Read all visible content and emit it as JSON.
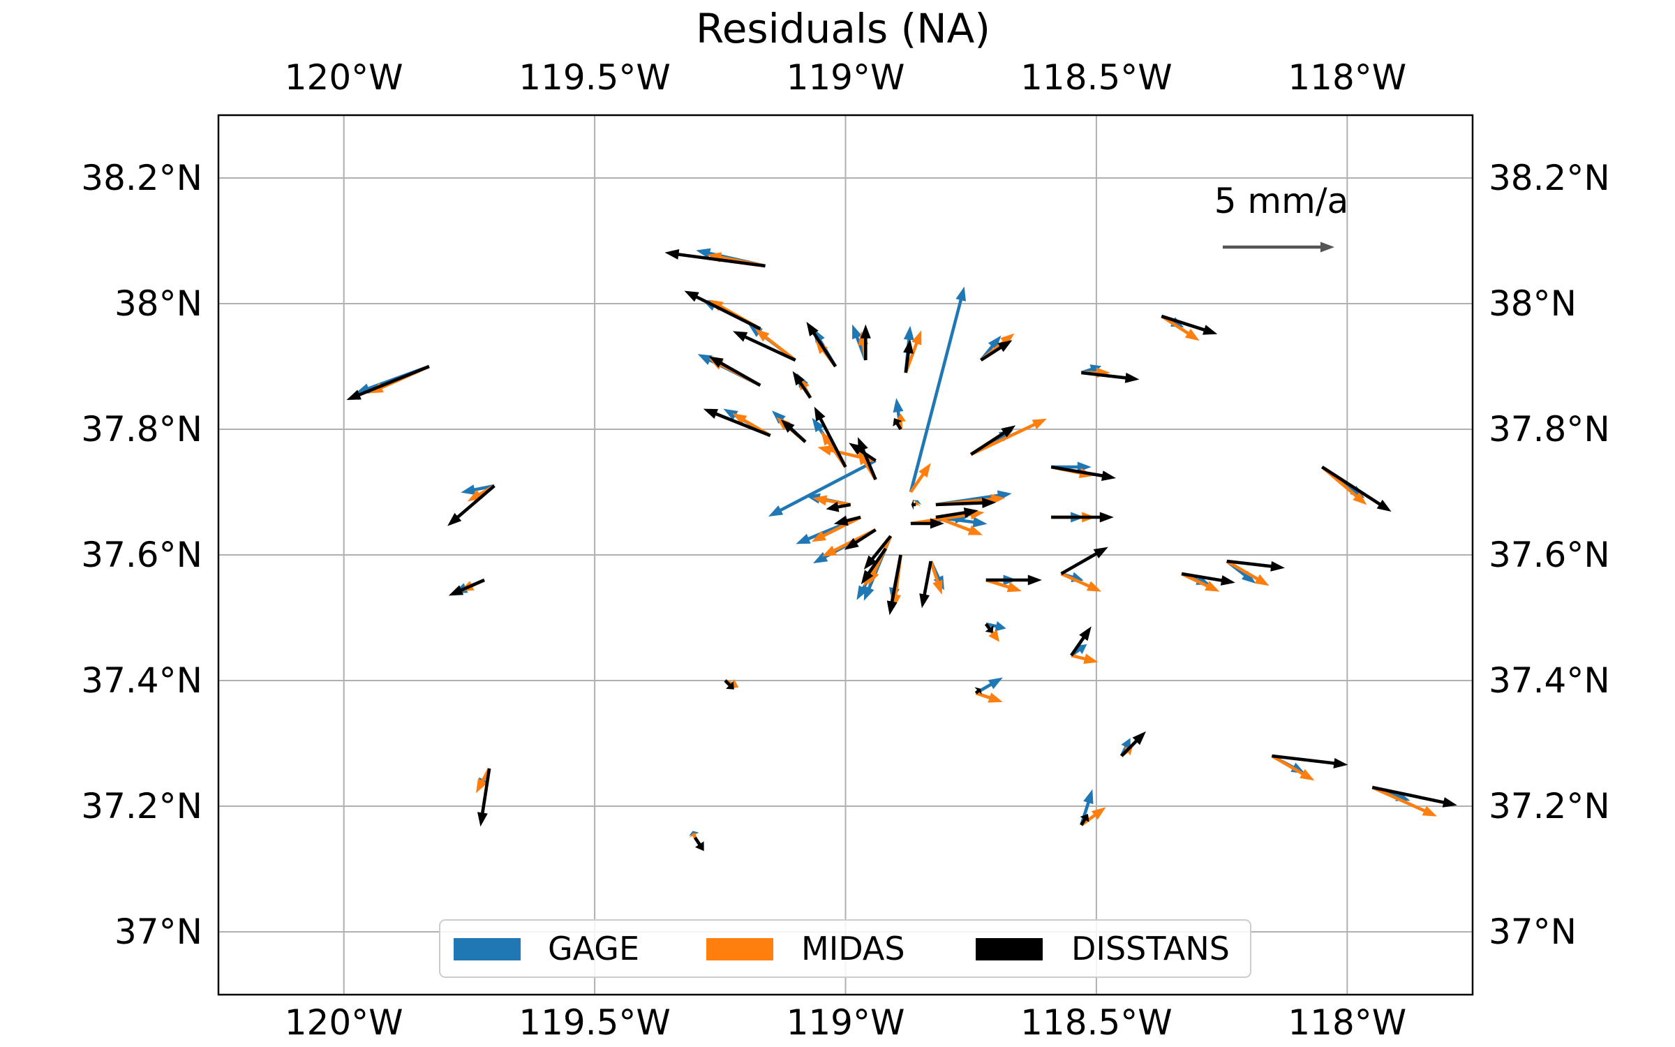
{
  "title": "Residuals (NA)",
  "map": {
    "lon_range": [
      -120.25,
      -117.75
    ],
    "lat_range": [
      36.9,
      38.3
    ],
    "lon_ticks": [
      {
        "value": -120.0,
        "label": "120°W"
      },
      {
        "value": -119.5,
        "label": "119.5°W"
      },
      {
        "value": -119.0,
        "label": "119°W"
      },
      {
        "value": -118.5,
        "label": "118.5°W"
      },
      {
        "value": -118.0,
        "label": "118°W"
      }
    ],
    "lat_ticks": [
      {
        "value": 38.2,
        "label": "38.2°N"
      },
      {
        "value": 38.0,
        "label": "38°N"
      },
      {
        "value": 37.8,
        "label": "37.8°N"
      },
      {
        "value": 37.6,
        "label": "37.6°N"
      },
      {
        "value": 37.4,
        "label": "37.4°N"
      },
      {
        "value": 37.2,
        "label": "37.2°N"
      },
      {
        "value": 37.0,
        "label": "37°N"
      }
    ],
    "grid": true
  },
  "scale": {
    "label": "5 mm/a",
    "value_mm_a": 5,
    "color": "#555555"
  },
  "colors": {
    "GAGE": "#1f77b4",
    "MIDAS": "#ff7f0e",
    "DISSTANS": "#000000"
  },
  "legend": {
    "placement": "bottom-center",
    "items": [
      {
        "name": "GAGE",
        "color": "#1f77b4"
      },
      {
        "name": "MIDAS",
        "color": "#ff7f0e"
      },
      {
        "name": "DISSTANS",
        "color": "#000000"
      }
    ]
  },
  "chart_data": {
    "type": "vector-field",
    "units": "mm/a",
    "stations": [
      {
        "lon": -119.83,
        "lat": 37.9,
        "g": [
          -3.3,
          -1.2
        ],
        "m": [
          -2.7,
          -1.2
        ],
        "d": [
          -3.7,
          -1.5
        ]
      },
      {
        "lon": -119.7,
        "lat": 37.71,
        "g": [
          -1.5,
          -0.3
        ],
        "m": [
          -1.2,
          -0.7
        ],
        "d": [
          -2.1,
          -1.8
        ]
      },
      {
        "lon": -119.72,
        "lat": 37.56,
        "g": [
          -1.4,
          -0.6
        ],
        "m": [
          -1.1,
          -0.5
        ],
        "d": [
          -1.6,
          -0.7
        ]
      },
      {
        "lon": -119.71,
        "lat": 37.26,
        "g": [
          -0.5,
          -1.0
        ],
        "m": [
          -0.6,
          -1.1
        ],
        "d": [
          -0.4,
          -2.6
        ]
      },
      {
        "lon": -119.3,
        "lat": 37.15,
        "g": [
          -0.1,
          0.3
        ],
        "m": [
          -0.1,
          0.2
        ],
        "d": [
          0.4,
          -0.6
        ]
      },
      {
        "lon": -119.16,
        "lat": 38.06,
        "g": [
          -3.1,
          0.7
        ],
        "m": [
          -2.6,
          0.5
        ],
        "d": [
          -4.5,
          0.6
        ]
      },
      {
        "lon": -119.17,
        "lat": 37.96,
        "g": [
          -2.6,
          1.3
        ],
        "m": [
          -2.3,
          1.3
        ],
        "d": [
          -3.4,
          1.7
        ]
      },
      {
        "lon": -119.1,
        "lat": 37.91,
        "g": [
          -2.1,
          1.6
        ],
        "m": [
          -1.8,
          1.4
        ],
        "d": [
          -2.8,
          1.3
        ]
      },
      {
        "lon": -119.02,
        "lat": 37.9,
        "g": [
          -1.0,
          1.7
        ],
        "m": [
          -0.9,
          1.2
        ],
        "d": [
          -1.3,
          2.0
        ]
      },
      {
        "lon": -118.96,
        "lat": 37.91,
        "g": [
          -0.6,
          1.6
        ],
        "m": [
          -0.2,
          1.3
        ],
        "d": [
          0.0,
          1.6
        ]
      },
      {
        "lon": -118.88,
        "lat": 37.89,
        "g": [
          0.2,
          2.1
        ],
        "m": [
          0.7,
          1.9
        ],
        "d": [
          0.2,
          1.5
        ]
      },
      {
        "lon": -118.73,
        "lat": 37.91,
        "g": [
          0.9,
          1.1
        ],
        "m": [
          1.5,
          1.2
        ],
        "d": [
          1.4,
          0.9
        ]
      },
      {
        "lon": -118.53,
        "lat": 37.89,
        "g": [
          0.9,
          0.3
        ],
        "m": [
          1.3,
          0.0
        ],
        "d": [
          2.6,
          -0.3
        ]
      },
      {
        "lon": -118.37,
        "lat": 37.98,
        "g": [
          1.0,
          -0.5
        ],
        "m": [
          1.7,
          -1.1
        ],
        "d": [
          2.5,
          -0.8
        ]
      },
      {
        "lon": -119.07,
        "lat": 37.85,
        "g": [
          -0.6,
          1.1
        ],
        "m": [
          -0.5,
          0.9
        ],
        "d": [
          -0.8,
          1.2
        ]
      },
      {
        "lon": -119.17,
        "lat": 37.87,
        "g": [
          -2.8,
          1.4
        ],
        "m": [
          -2.3,
          1.2
        ],
        "d": [
          -2.3,
          1.3
        ]
      },
      {
        "lon": -119.15,
        "lat": 37.79,
        "g": [
          -2.1,
          1.2
        ],
        "m": [
          -1.7,
          1.0
        ],
        "d": [
          -3.0,
          1.2
        ]
      },
      {
        "lon": -119.08,
        "lat": 37.78,
        "g": [
          -1.5,
          1.4
        ],
        "m": [
          -1.3,
          1.1
        ],
        "d": [
          -1.1,
          1.0
        ]
      },
      {
        "lon": -119.0,
        "lat": 37.74,
        "g": [
          -1.5,
          2.2
        ],
        "m": [
          -1.1,
          1.6
        ],
        "d": [
          -1.4,
          2.7
        ]
      },
      {
        "lon": -118.94,
        "lat": 37.72,
        "g": [
          -0.8,
          1.5
        ],
        "m": [
          -0.8,
          1.3
        ],
        "d": [
          -0.8,
          1.9
        ]
      },
      {
        "lon": -118.89,
        "lat": 37.8,
        "g": [
          -0.2,
          1.4
        ],
        "m": [
          0.0,
          0.7
        ],
        "d": [
          -0.3,
          0.5
        ]
      },
      {
        "lon": -118.87,
        "lat": 37.7,
        "g": [
          2.4,
          9.2
        ],
        "m": [
          0.9,
          1.3
        ],
        "d": [
          0.0,
          0.0
        ]
      },
      {
        "lon": -118.75,
        "lat": 37.76,
        "g": [
          1.9,
          1.1
        ],
        "m": [
          3.4,
          1.6
        ],
        "d": [
          2.0,
          1.3
        ]
      },
      {
        "lon": -118.94,
        "lat": 37.75,
        "g": [
          -4.8,
          -2.5
        ],
        "m": [
          -2.6,
          0.6
        ],
        "d": [
          -1.2,
          0.8
        ]
      },
      {
        "lon": -118.59,
        "lat": 37.74,
        "g": [
          1.8,
          0.0
        ],
        "m": [
          1.9,
          -0.4
        ],
        "d": [
          2.9,
          -0.5
        ]
      },
      {
        "lon": -118.05,
        "lat": 37.74,
        "g": [
          1.9,
          -1.4
        ],
        "m": [
          2.0,
          -1.7
        ],
        "d": [
          3.1,
          -2.0
        ]
      },
      {
        "lon": -118.99,
        "lat": 37.68,
        "g": [
          -2.0,
          0.4
        ],
        "m": [
          -1.7,
          0.3
        ],
        "d": [
          -1.1,
          -0.2
        ]
      },
      {
        "lon": -118.97,
        "lat": 37.66,
        "g": [
          -2.9,
          -1.2
        ],
        "m": [
          -2.2,
          -1.1
        ],
        "d": [
          -1.2,
          -0.3
        ]
      },
      {
        "lon": -118.94,
        "lat": 37.64,
        "g": [
          -2.8,
          -1.5
        ],
        "m": [
          -2.4,
          -1.2
        ],
        "d": [
          -1.4,
          -0.9
        ]
      },
      {
        "lon": -118.92,
        "lat": 37.61,
        "g": [
          -1.3,
          -2.3
        ],
        "m": [
          -1.0,
          -1.7
        ],
        "d": [
          -1.1,
          -1.6
        ]
      },
      {
        "lon": -118.91,
        "lat": 37.63,
        "g": [
          -1.2,
          -2.9
        ],
        "m": [
          -1.0,
          -2.2
        ],
        "d": [
          -1.2,
          -1.5
        ]
      },
      {
        "lon": -118.89,
        "lat": 37.6,
        "g": [
          -0.4,
          -2.1
        ],
        "m": [
          -0.3,
          -2.4
        ],
        "d": [
          -0.5,
          -2.7
        ]
      },
      {
        "lon": -118.83,
        "lat": 37.59,
        "g": [
          0.6,
          -1.3
        ],
        "m": [
          0.5,
          -1.5
        ],
        "d": [
          -0.4,
          -2.1
        ]
      },
      {
        "lon": -118.86,
        "lat": 37.68,
        "g": [
          0.1,
          0.2
        ],
        "m": [
          0.1,
          0.1
        ],
        "d": [
          -0.2,
          0.0
        ]
      },
      {
        "lon": -118.82,
        "lat": 37.68,
        "g": [
          3.4,
          0.5
        ],
        "m": [
          3.1,
          0.3
        ],
        "d": [
          2.7,
          0.1
        ]
      },
      {
        "lon": -118.82,
        "lat": 37.66,
        "g": [
          2.3,
          -0.3
        ],
        "m": [
          2.1,
          -0.8
        ],
        "d": [
          1.9,
          0.3
        ]
      },
      {
        "lon": -118.87,
        "lat": 37.65,
        "g": [
          2.6,
          0.3
        ],
        "m": [
          3.3,
          0.5
        ],
        "d": [
          1.5,
          0.0
        ]
      },
      {
        "lon": -118.57,
        "lat": 37.57,
        "g": [
          1.0,
          -0.3
        ],
        "m": [
          1.8,
          -0.8
        ],
        "d": [
          2.1,
          1.2
        ]
      },
      {
        "lon": -118.59,
        "lat": 37.66,
        "g": [
          1.5,
          0.0
        ],
        "m": [
          2.0,
          0.0
        ],
        "d": [
          2.8,
          0.0
        ]
      },
      {
        "lon": -118.72,
        "lat": 37.56,
        "g": [
          1.4,
          0.0
        ],
        "m": [
          1.6,
          -0.5
        ],
        "d": [
          2.5,
          0.0
        ]
      },
      {
        "lon": -118.33,
        "lat": 37.57,
        "g": [
          1.3,
          -0.5
        ],
        "m": [
          1.7,
          -0.8
        ],
        "d": [
          2.4,
          -0.4
        ]
      },
      {
        "lon": -118.24,
        "lat": 37.59,
        "g": [
          1.3,
          -1.0
        ],
        "m": [
          1.9,
          -1.1
        ],
        "d": [
          2.6,
          -0.3
        ]
      },
      {
        "lon": -118.72,
        "lat": 37.49,
        "g": [
          0.9,
          -0.2
        ],
        "m": [
          0.6,
          -0.8
        ],
        "d": [
          0.3,
          -0.4
        ]
      },
      {
        "lon": -118.55,
        "lat": 37.44,
        "g": [
          0.7,
          0.5
        ],
        "m": [
          1.2,
          -0.3
        ],
        "d": [
          0.9,
          1.3
        ]
      },
      {
        "lon": -118.74,
        "lat": 37.38,
        "g": [
          1.2,
          0.7
        ],
        "m": [
          1.2,
          -0.4
        ],
        "d": [
          0.2,
          0.2
        ]
      },
      {
        "lon": -119.24,
        "lat": 37.4,
        "g": [
          0.6,
          -0.3
        ],
        "m": [
          0.6,
          -0.3
        ],
        "d": [
          0.4,
          -0.4
        ]
      },
      {
        "lon": -118.15,
        "lat": 37.28,
        "g": [
          1.5,
          -0.8
        ],
        "m": [
          1.9,
          -1.1
        ],
        "d": [
          3.4,
          -0.4
        ]
      },
      {
        "lon": -117.95,
        "lat": 37.23,
        "g": [
          1.7,
          -0.6
        ],
        "m": [
          2.9,
          -1.3
        ],
        "d": [
          3.8,
          -0.8
        ]
      },
      {
        "lon": -118.53,
        "lat": 37.17,
        "g": [
          0.5,
          1.6
        ],
        "m": [
          1.1,
          0.8
        ],
        "d": [
          0.3,
          0.5
        ]
      },
      {
        "lon": -118.45,
        "lat": 37.28,
        "g": [
          0.4,
          0.8
        ],
        "m": [
          0.5,
          0.4
        ],
        "d": [
          1.1,
          1.1
        ]
      }
    ]
  }
}
